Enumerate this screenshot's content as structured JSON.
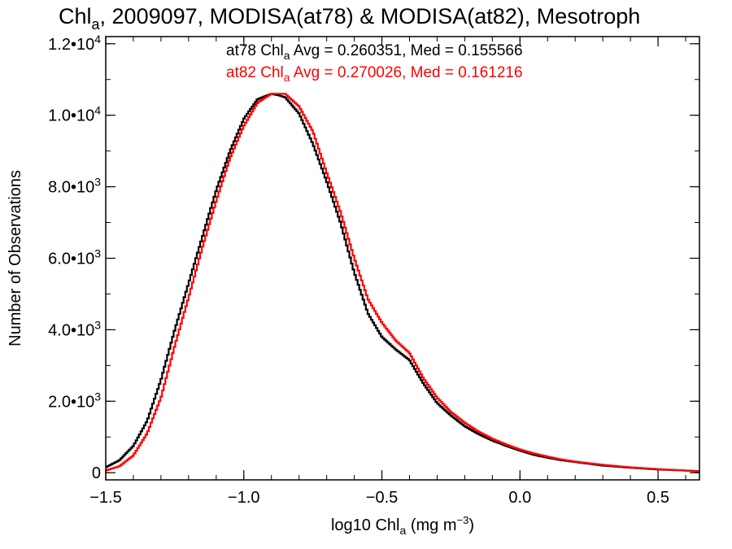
{
  "chart_data": {
    "type": "line",
    "step": true,
    "title": "Chl, 2009097, MODISA(at78) & MODISA(at82), Mesotroph",
    "title_parts": {
      "base": "Chl",
      "sub": "a",
      "rest": ", 2009097, MODISA(at78) & MODISA(at82), Mesotroph"
    },
    "xlabel": {
      "base": "log10 Chl",
      "sub": "a",
      "units_pre": " (mg m",
      "units_sup": "−3",
      "units_post": ")"
    },
    "ylabel": "Number of Observations",
    "xlim": [
      -1.5,
      0.65
    ],
    "ylim": [
      -200,
      12200
    ],
    "xticks": [
      {
        "value": -1.5,
        "label": "−1.5"
      },
      {
        "value": -1.0,
        "label": "−1.0"
      },
      {
        "value": -0.5,
        "label": "−0.5"
      },
      {
        "value": 0.0,
        "label": "0.0"
      },
      {
        "value": 0.5,
        "label": "0.5"
      }
    ],
    "yticks": [
      {
        "value": 0,
        "base": "0",
        "exp": ""
      },
      {
        "value": 2000,
        "base": "2.0•10",
        "exp": "3"
      },
      {
        "value": 4000,
        "base": "4.0•10",
        "exp": "3"
      },
      {
        "value": 6000,
        "base": "6.0•10",
        "exp": "3"
      },
      {
        "value": 8000,
        "base": "8.0•10",
        "exp": "3"
      },
      {
        "value": 10000,
        "base": "1.0•10",
        "exp": "4"
      },
      {
        "value": 12000,
        "base": "1.2•10",
        "exp": "4"
      }
    ],
    "annotations": [
      {
        "pre": "at78 Chl",
        "sub": "a",
        "post": " Avg = 0.260351, Med = 0.155566",
        "color": "#000000"
      },
      {
        "pre": "at82 Chl",
        "sub": "a",
        "post": " Avg = 0.270026, Med = 0.161216",
        "color": "#ff0000"
      }
    ],
    "series": [
      {
        "name": "at78",
        "color": "#000000",
        "x": [
          -1.5,
          -1.45,
          -1.4,
          -1.35,
          -1.3,
          -1.25,
          -1.2,
          -1.15,
          -1.1,
          -1.05,
          -1.0,
          -0.95,
          -0.9,
          -0.87,
          -0.85,
          -0.8,
          -0.75,
          -0.7,
          -0.65,
          -0.6,
          -0.55,
          -0.5,
          -0.45,
          -0.4,
          -0.35,
          -0.3,
          -0.25,
          -0.2,
          -0.15,
          -0.1,
          -0.05,
          0.0,
          0.05,
          0.1,
          0.15,
          0.2,
          0.3,
          0.4,
          0.5,
          0.6,
          0.65
        ],
        "y": [
          150,
          350,
          750,
          1450,
          2600,
          4000,
          5300,
          6600,
          7900,
          9000,
          9900,
          10450,
          10600,
          10550,
          10500,
          10050,
          9200,
          8150,
          7000,
          5600,
          4450,
          3800,
          3450,
          3150,
          2500,
          1950,
          1600,
          1300,
          1080,
          900,
          750,
          620,
          500,
          420,
          350,
          300,
          200,
          140,
          90,
          60,
          40
        ]
      },
      {
        "name": "at82",
        "color": "#ff0000",
        "x": [
          -1.5,
          -1.45,
          -1.4,
          -1.35,
          -1.3,
          -1.25,
          -1.2,
          -1.15,
          -1.1,
          -1.05,
          -1.0,
          -0.95,
          -0.9,
          -0.87,
          -0.85,
          -0.8,
          -0.75,
          -0.7,
          -0.65,
          -0.6,
          -0.55,
          -0.5,
          -0.45,
          -0.4,
          -0.35,
          -0.3,
          -0.25,
          -0.2,
          -0.15,
          -0.1,
          -0.05,
          0.0,
          0.05,
          0.1,
          0.15,
          0.2,
          0.3,
          0.4,
          0.5,
          0.6,
          0.65
        ],
        "y": [
          60,
          180,
          480,
          1100,
          2100,
          3550,
          4900,
          6300,
          7600,
          8800,
          9700,
          10350,
          10600,
          10600,
          10600,
          10250,
          9550,
          8400,
          7300,
          6000,
          4850,
          4200,
          3700,
          3350,
          2650,
          2100,
          1700,
          1400,
          1150,
          950,
          790,
          650,
          540,
          450,
          370,
          310,
          220,
          150,
          100,
          60,
          40
        ]
      }
    ]
  }
}
